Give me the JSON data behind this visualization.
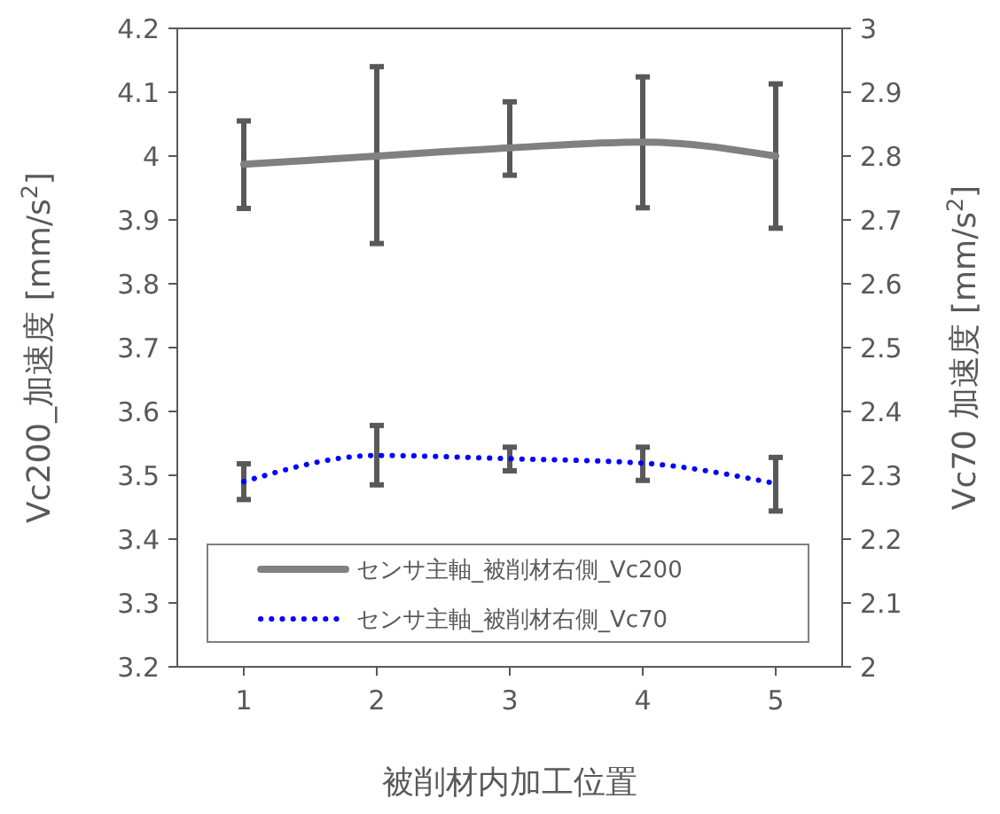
{
  "chart_data": {
    "type": "line",
    "xlabel": "被削材内加工位置",
    "ylabel": "Vc200_加速度 [mm/s$^{2}$]",
    "y2label": "Vc70 加速度 [mm/s$^{2}$]",
    "categories": [
      "1",
      "2",
      "3",
      "4",
      "5"
    ],
    "series": [
      {
        "name": "センサ主軸_被削材右側_Vc200",
        "color": "#808080",
        "line_style": "solid",
        "values": [
          3.987,
          4.0,
          4.013,
          4.022,
          4.0
        ],
        "errors": [
          [
            3.918,
            4.055
          ],
          [
            3.863,
            4.14
          ],
          [
            3.97,
            4.085
          ],
          [
            3.919,
            4.124
          ],
          [
            3.887,
            4.113
          ]
        ]
      },
      {
        "name": "センサ主軸_被削材右側_Vc70",
        "color": "#0000ff",
        "line_style": "dotted",
        "axis": "y2",
        "values": [
          2.29,
          2.331,
          2.326,
          2.319,
          2.287
        ],
        "errors": [
          [
            2.262,
            2.318
          ],
          [
            2.285,
            2.378
          ],
          [
            2.307,
            2.344
          ],
          [
            2.292,
            2.344
          ],
          [
            2.244,
            2.328
          ]
        ]
      }
    ],
    "ylim": [
      3.2,
      4.2
    ],
    "yticks": [
      3.2,
      3.3,
      3.4,
      3.5,
      3.6,
      3.7,
      3.8,
      3.9,
      4,
      4.1,
      4.2
    ],
    "y2lim": [
      2,
      3
    ],
    "y2ticks": [
      2,
      2.1,
      2.2,
      2.3,
      2.4,
      2.5,
      2.6,
      2.7,
      2.8,
      2.9,
      3
    ],
    "grid": false,
    "legend": "bottom",
    "marker": "none"
  }
}
